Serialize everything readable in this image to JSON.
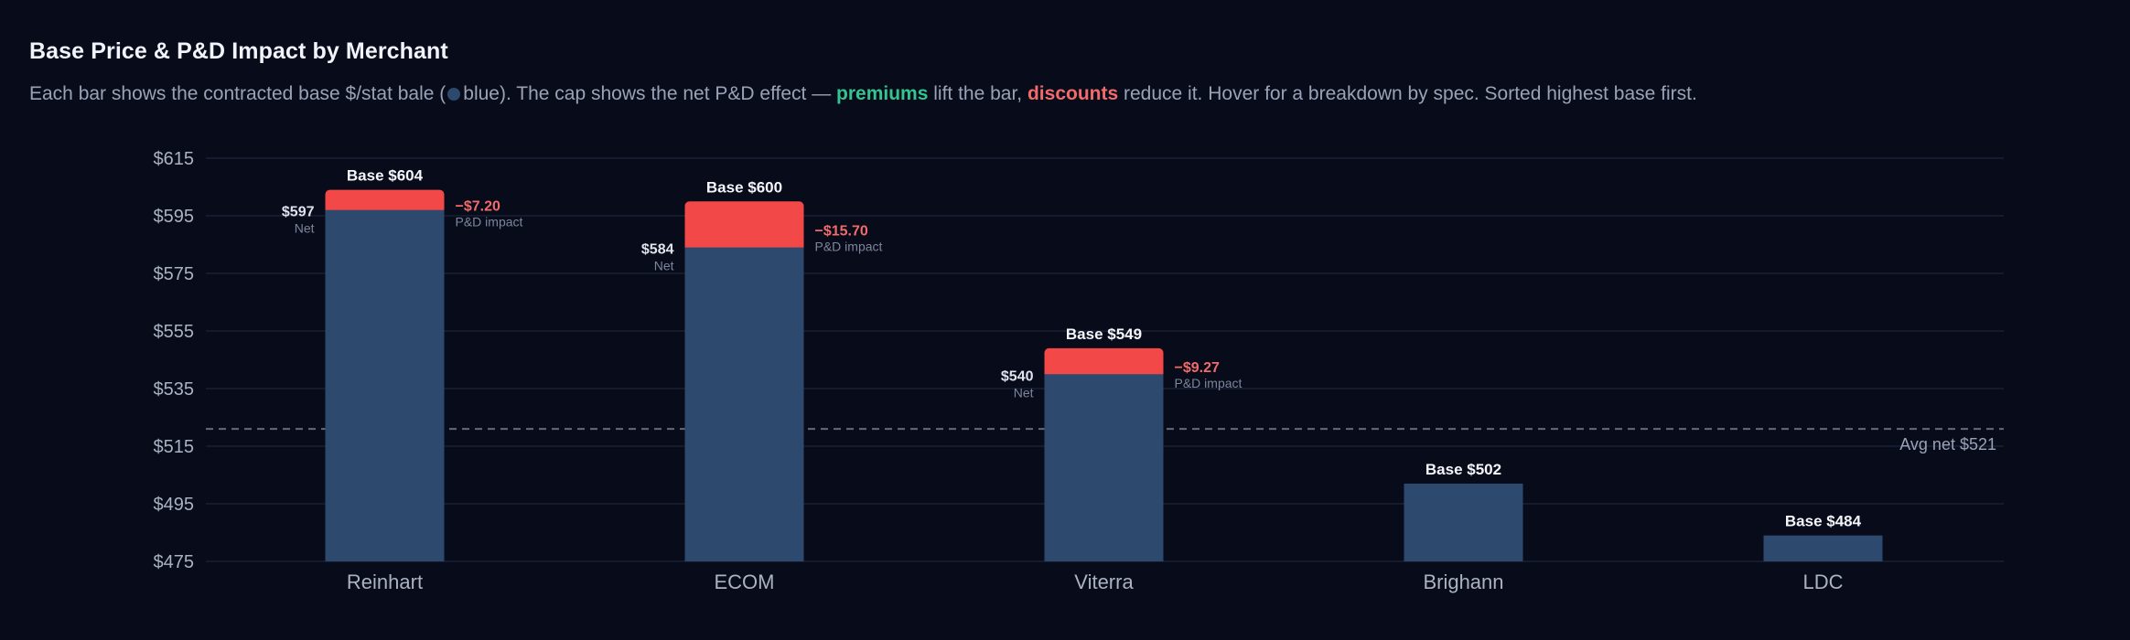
{
  "header": {
    "title": "Base Price & P&D Impact by Merchant",
    "subtitle_part1": "Each bar shows the contracted base $/stat bale (",
    "subtitle_part2": "blue). The cap shows the net P&D effect — ",
    "premiums_word": "premiums",
    "subtitle_part3": " lift the bar, ",
    "discounts_word": "discounts",
    "subtitle_part4": " reduce it. Hover for a breakdown by spec. Sorted highest base first."
  },
  "colors": {
    "background": "#070b1a",
    "base_bar": "#2d4a6e",
    "discount_cap": "#f24848",
    "premium_text": "#35c48f",
    "discount_text": "#f26b6b",
    "gridline": "#1a2134",
    "avg_line": "#626a7c"
  },
  "chart_data": {
    "type": "bar",
    "title": "Base Price & P&D Impact by Merchant",
    "categories": [
      "Reinhart",
      "ECOM",
      "Viterra",
      "Brighann",
      "LDC"
    ],
    "series": [
      {
        "name": "Base",
        "values": [
          604,
          600,
          549,
          502,
          484
        ]
      },
      {
        "name": "Net",
        "values": [
          597,
          584,
          540,
          null,
          null
        ]
      },
      {
        "name": "P&D impact",
        "values": [
          -7.2,
          -15.7,
          -9.27,
          null,
          null
        ]
      }
    ],
    "base_labels": [
      "Base $604",
      "Base $600",
      "Base $549",
      "Base $502",
      "Base $484"
    ],
    "net_labels": [
      "$597",
      "$584",
      "$540",
      "",
      ""
    ],
    "net_tag": "Net",
    "impact_labels": [
      "−$7.20",
      "−$15.70",
      "−$9.27",
      "",
      ""
    ],
    "impact_tag": "P&D impact",
    "y_ticks": [
      475,
      495,
      515,
      535,
      555,
      575,
      595,
      615
    ],
    "y_tick_labels": [
      "$475",
      "$495",
      "$515",
      "$535",
      "$555",
      "$575",
      "$595",
      "$615"
    ],
    "ylim": [
      475,
      615
    ],
    "avg_net": 521,
    "avg_label": "Avg net $521",
    "grid": true
  }
}
